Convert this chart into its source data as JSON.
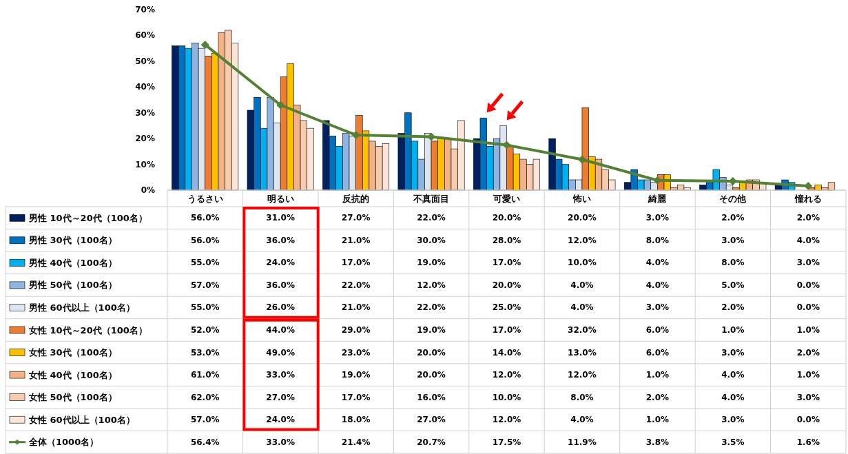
{
  "chart_data": {
    "type": "bar",
    "categories": [
      "うるさい",
      "明るい",
      "反抗的",
      "不真面目",
      "可愛い",
      "怖い",
      "綺麗",
      "その他",
      "憧れる"
    ],
    "ylim": [
      0,
      70
    ],
    "yticks": [
      {
        "value": 0,
        "label": "0%"
      },
      {
        "value": 10,
        "label": "10%"
      },
      {
        "value": 20,
        "label": "20%"
      },
      {
        "value": 30,
        "label": "30%"
      },
      {
        "value": 40,
        "label": "40%"
      },
      {
        "value": 50,
        "label": "50%"
      },
      {
        "value": 60,
        "label": "60%"
      },
      {
        "value": 70,
        "label": "70%"
      }
    ],
    "legend": "bottom",
    "grid": false,
    "series": [
      {
        "name": "男性 10代～20代（100名）",
        "color": "#002060",
        "values": [
          56,
          31,
          27,
          22,
          20,
          20,
          3,
          2,
          2
        ],
        "value_labels": [
          "56.0%",
          "31.0%",
          "27.0%",
          "22.0%",
          "20.0%",
          "20.0%",
          "3.0%",
          "2.0%",
          "2.0%"
        ]
      },
      {
        "name": "男性 30代（100名）",
        "color": "#0070c0",
        "values": [
          56,
          36,
          21,
          30,
          28,
          12,
          8,
          3,
          4
        ],
        "value_labels": [
          "56.0%",
          "36.0%",
          "21.0%",
          "30.0%",
          "28.0%",
          "12.0%",
          "8.0%",
          "3.0%",
          "4.0%"
        ]
      },
      {
        "name": "男性 40代（100名）",
        "color": "#00b0f0",
        "values": [
          55,
          24,
          17,
          19,
          17,
          10,
          4,
          8,
          3
        ],
        "value_labels": [
          "55.0%",
          "24.0%",
          "17.0%",
          "19.0%",
          "17.0%",
          "10.0%",
          "4.0%",
          "8.0%",
          "3.0%"
        ]
      },
      {
        "name": "男性 50代（100名）",
        "color": "#8db4e2",
        "values": [
          57,
          36,
          22,
          12,
          20,
          4,
          4,
          5,
          0
        ],
        "value_labels": [
          "57.0%",
          "36.0%",
          "22.0%",
          "12.0%",
          "20.0%",
          "4.0%",
          "4.0%",
          "5.0%",
          "0.0%"
        ]
      },
      {
        "name": "男性 60代以上（100名）",
        "color": "#dce6f1",
        "values": [
          55,
          26,
          21,
          22,
          25,
          4,
          3,
          2,
          0
        ],
        "value_labels": [
          "55.0%",
          "26.0%",
          "21.0%",
          "22.0%",
          "25.0%",
          "4.0%",
          "3.0%",
          "2.0%",
          "0.0%"
        ]
      },
      {
        "name": "女性 10代～20代（100名）",
        "color": "#ed7d31",
        "values": [
          52,
          44,
          29,
          19,
          17,
          32,
          6,
          1,
          1
        ],
        "value_labels": [
          "52.0%",
          "44.0%",
          "29.0%",
          "19.0%",
          "17.0%",
          "32.0%",
          "6.0%",
          "1.0%",
          "1.0%"
        ]
      },
      {
        "name": "女性 30代（100名）",
        "color": "#ffc000",
        "values": [
          53,
          49,
          23,
          20,
          14,
          13,
          6,
          3,
          2
        ],
        "value_labels": [
          "53.0%",
          "49.0%",
          "23.0%",
          "20.0%",
          "14.0%",
          "13.0%",
          "6.0%",
          "3.0%",
          "2.0%"
        ]
      },
      {
        "name": "女性 40代（100名）",
        "color": "#f4b183",
        "values": [
          61,
          33,
          19,
          20,
          12,
          12,
          1,
          4,
          1
        ],
        "value_labels": [
          "61.0%",
          "33.0%",
          "19.0%",
          "20.0%",
          "12.0%",
          "12.0%",
          "1.0%",
          "4.0%",
          "1.0%"
        ]
      },
      {
        "name": "女性 50代（100名）",
        "color": "#f8cbad",
        "values": [
          62,
          27,
          17,
          16,
          10,
          8,
          2,
          4,
          3
        ],
        "value_labels": [
          "62.0%",
          "27.0%",
          "17.0%",
          "16.0%",
          "10.0%",
          "8.0%",
          "2.0%",
          "4.0%",
          "3.0%"
        ]
      },
      {
        "name": "女性 60代以上（100名）",
        "color": "#fce4d6",
        "values": [
          57,
          24,
          18,
          27,
          12,
          4,
          1,
          3,
          0
        ],
        "value_labels": [
          "57.0%",
          "24.0%",
          "18.0%",
          "27.0%",
          "12.0%",
          "4.0%",
          "1.0%",
          "3.0%",
          "0.0%"
        ]
      },
      {
        "name": "全体（1000名）",
        "type": "line",
        "color": "#548235",
        "marker": "diamond",
        "values": [
          56.4,
          33.0,
          21.4,
          20.7,
          17.5,
          11.9,
          3.8,
          3.5,
          1.6
        ],
        "value_labels": [
          "56.4%",
          "33.0%",
          "21.4%",
          "20.7%",
          "17.5%",
          "11.9%",
          "3.8%",
          "3.5%",
          "1.6%"
        ]
      }
    ]
  }
}
